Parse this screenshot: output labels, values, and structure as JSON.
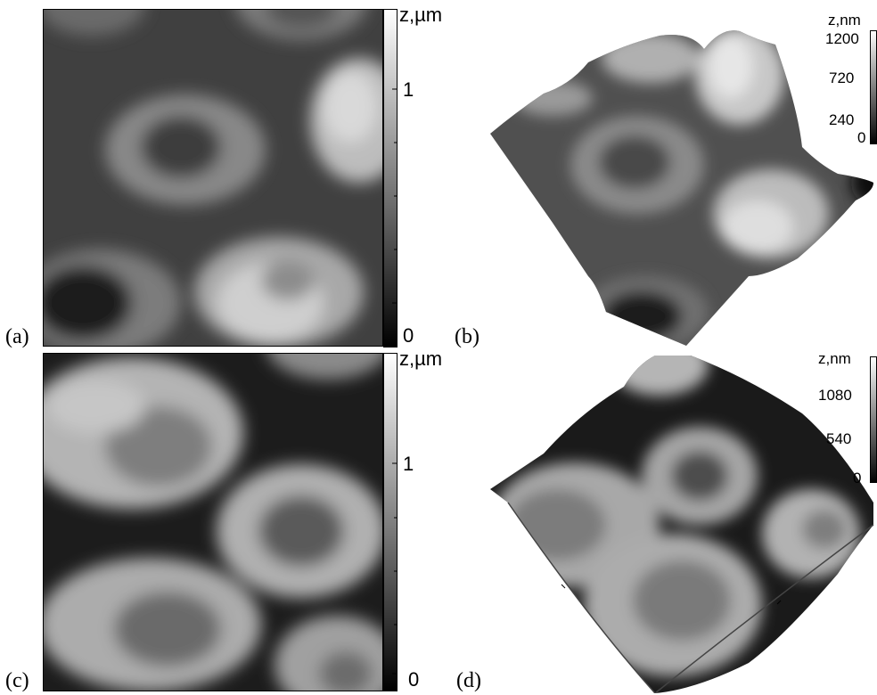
{
  "panels": {
    "a": {
      "label": "(a)",
      "scale_unit": "z,µm",
      "ticks": [
        "1",
        "0"
      ]
    },
    "b": {
      "label": "(b)",
      "scale_unit": "z,nm",
      "ticks": [
        "1200",
        "720",
        "240",
        "0"
      ]
    },
    "c": {
      "label": "(c)",
      "scale_unit": "z,µm",
      "ticks": [
        "1",
        "0"
      ]
    },
    "d": {
      "label": "(d)",
      "scale_unit": "z,nm",
      "ticks": [
        "1080",
        "540",
        "0"
      ]
    }
  }
}
